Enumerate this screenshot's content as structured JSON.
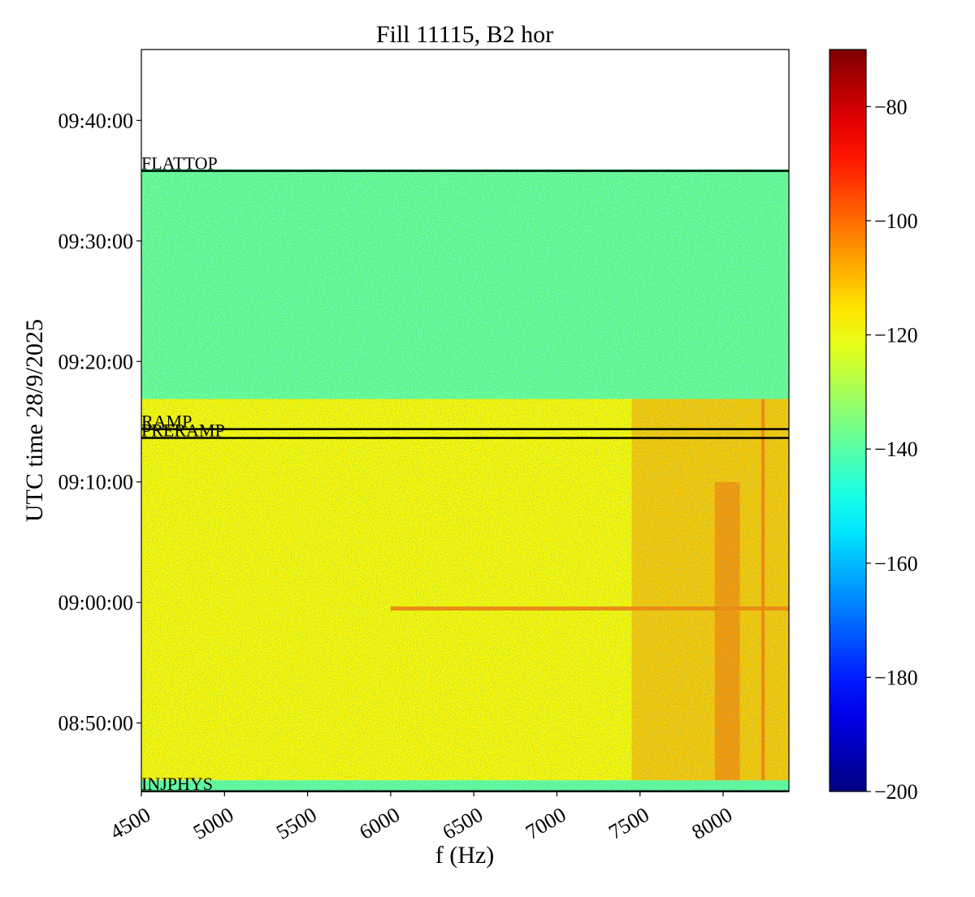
{
  "chart_data": {
    "type": "spectrogram",
    "title": "Fill 11115, B2 hor",
    "xlabel": "f (Hz)",
    "ylabel": "UTC time 28/9/2025",
    "xlim": [
      4500,
      8396
    ],
    "xticks": [
      4500,
      5000,
      5500,
      6000,
      6500,
      7000,
      7500,
      8000
    ],
    "ylim": [
      "08:44:19",
      "09:45:53"
    ],
    "yticks": [
      "08:50:00",
      "09:00:00",
      "09:10:00",
      "09:20:00",
      "09:30:00",
      "09:40:00"
    ],
    "colormap": "jet",
    "clim": [
      -200,
      -70
    ],
    "cticks": [
      {
        "value": -200,
        "label": "−200"
      },
      {
        "value": -180,
        "label": "−180"
      },
      {
        "value": -160,
        "label": "−160"
      },
      {
        "value": -140,
        "label": "−140"
      },
      {
        "value": -120,
        "label": "−120"
      },
      {
        "value": -100,
        "label": "−100"
      },
      {
        "value": -80,
        "label": "−80"
      }
    ],
    "regions": [
      {
        "f": [
          4500,
          8396
        ],
        "t": [
          "08:44:19",
          "08:45:15"
        ],
        "level": -138
      },
      {
        "f": [
          4500,
          8396
        ],
        "t": [
          "08:45:15",
          "09:16:53"
        ],
        "level": -118
      },
      {
        "f": [
          4500,
          8396
        ],
        "t": [
          "09:16:53",
          "09:35:57"
        ],
        "level": -137
      },
      {
        "f": [
          7450,
          8396
        ],
        "t": [
          "08:45:15",
          "09:16:53"
        ],
        "level": -112
      },
      {
        "f": [
          7950,
          8100
        ],
        "t": [
          "08:45:15",
          "09:10:00"
        ],
        "level": -106
      },
      {
        "f": [
          6000,
          8396
        ],
        "t": [
          "08:59:20",
          "08:59:40"
        ],
        "level": -104
      },
      {
        "f": [
          8230,
          8250
        ],
        "t": [
          "08:45:15",
          "09:16:53"
        ],
        "level": -104
      }
    ],
    "markers": [
      {
        "name": "INJPHYS",
        "t": "08:44:20"
      },
      {
        "name": "PRERAMP",
        "t": "09:13:39"
      },
      {
        "name": "RAMP",
        "t": "09:14:23"
      },
      {
        "name": "FLATTOP",
        "t": "09:35:49"
      }
    ]
  }
}
